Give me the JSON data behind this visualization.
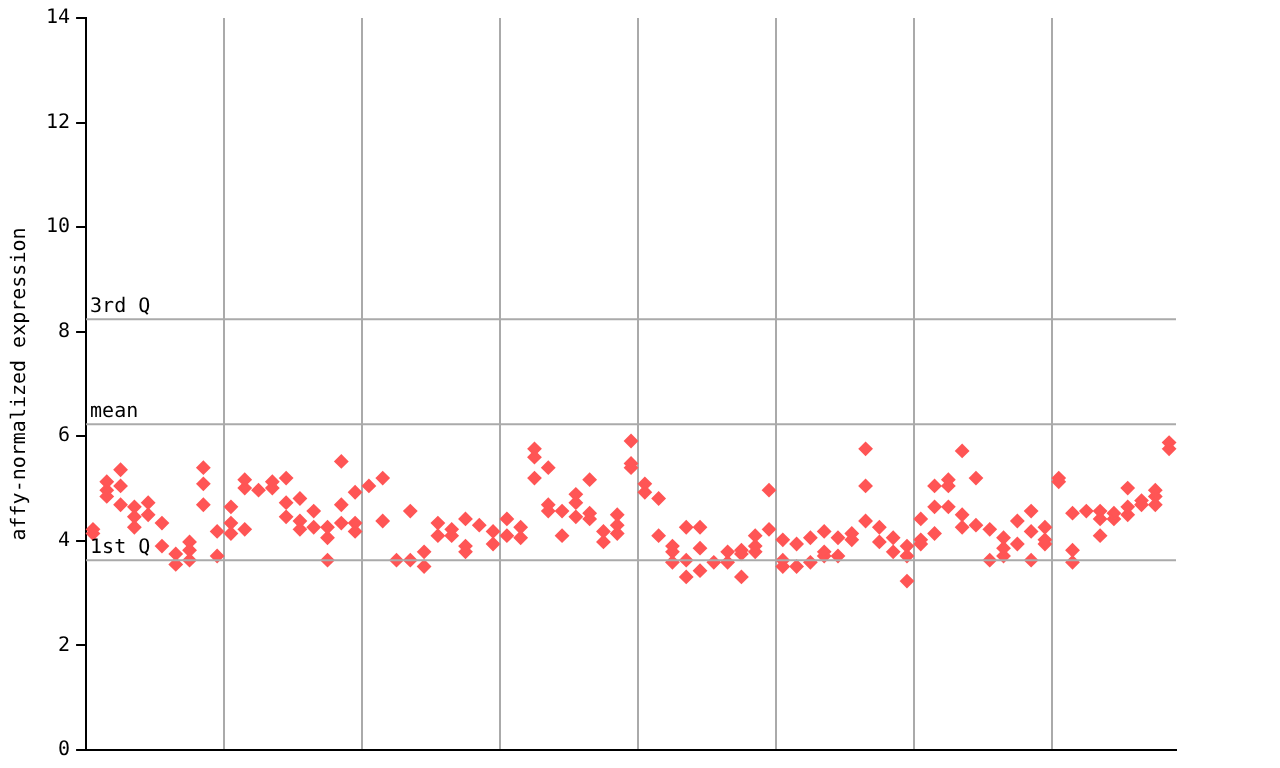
{
  "chart_data": {
    "type": "scatter",
    "ylabel": "affy-normalized expression",
    "ylim": [
      0,
      14
    ],
    "yticks": [
      0,
      2,
      4,
      6,
      8,
      10,
      12,
      14
    ],
    "categories": [
      null,
      null,
      null,
      null,
      null,
      null,
      null,
      null,
      null,
      null,
      null,
      null,
      null,
      null,
      null,
      null,
      null,
      null,
      null,
      null,
      null,
      null,
      null,
      null,
      null,
      null,
      null,
      null,
      null,
      null,
      null,
      null,
      null,
      null,
      null,
      null,
      null,
      null,
      null,
      null,
      null,
      null,
      null,
      null,
      null,
      null,
      null,
      null,
      null,
      null,
      null,
      null,
      null,
      null,
      null,
      null,
      null,
      null,
      null,
      null,
      null,
      null,
      null,
      null,
      null,
      null,
      null,
      null,
      null,
      null,
      null,
      null,
      null,
      null,
      null,
      null,
      null,
      null,
      null
    ],
    "tick_labels": "y",
    "grid": "x",
    "marker": "diamond",
    "ref_lines": [
      {
        "axis": "y",
        "value": 8.24,
        "label": "3rd Q",
        "color": "#aaaaaa"
      },
      {
        "axis": "y",
        "value": 6.23,
        "label": "mean",
        "color": "#aaaaaa"
      },
      {
        "axis": "y",
        "value": 3.63,
        "label": "1st Q",
        "color": "#aaaaaa"
      }
    ],
    "series": [
      {
        "color": "#ff5555",
        "values": [
          4.22,
          5.13,
          5.36,
          4.65,
          4.73,
          4.34,
          3.75,
          3.98,
          5.4,
          4.18,
          4.65,
          5.17,
          4.97,
          5.13,
          5.2,
          4.81,
          4.57,
          4.26,
          5.52,
          4.93,
          5.05,
          5.2,
          3.63,
          4.57,
          3.79,
          4.34,
          4.22,
          4.42,
          4.3,
          4.18,
          4.42,
          4.26,
          5.76,
          5.4,
          4.57,
          4.89,
          5.17,
          4.18,
          4.5,
          5.91,
          5.09,
          4.81,
          3.9,
          4.26,
          4.26,
          3.59,
          3.79,
          3.82,
          4.1,
          4.97,
          4.02,
          3.94,
          4.06,
          4.18,
          4.06,
          4.14,
          5.76,
          4.26,
          4.06,
          3.9,
          4.42,
          5.05,
          5.17,
          5.72,
          5.2,
          4.22,
          4.06,
          4.38,
          4.57,
          4.26,
          5.2,
          4.53,
          4.57,
          4.57,
          4.53,
          5.01,
          4.77,
          4.97,
          5.88
        ]
      },
      {
        "color": "#ff5555",
        "values": [
          4.14,
          4.97,
          5.05,
          4.46,
          4.5,
          3.9,
          3.55,
          3.82,
          5.09,
          3.71,
          4.34,
          5.01,
          null,
          5.01,
          4.73,
          4.38,
          4.26,
          4.06,
          4.69,
          4.34,
          null,
          4.38,
          null,
          3.63,
          3.51,
          4.1,
          4.1,
          3.9,
          null,
          3.94,
          4.1,
          4.06,
          5.6,
          4.69,
          4.1,
          4.73,
          4.53,
          3.98,
          4.3,
          5.48,
          4.93,
          4.1,
          3.79,
          3.63,
          3.86,
          null,
          3.59,
          3.75,
          3.9,
          4.22,
          3.63,
          3.51,
          3.59,
          3.79,
          3.71,
          4.02,
          5.05,
          3.98,
          3.79,
          3.71,
          4.02,
          4.65,
          5.05,
          4.5,
          4.3,
          3.63,
          3.86,
          3.94,
          4.18,
          4.02,
          5.13,
          3.82,
          null,
          4.42,
          4.42,
          4.65,
          4.69,
          4.85,
          5.76
        ]
      },
      {
        "color": "#ff5555",
        "values": [
          null,
          4.85,
          4.69,
          4.26,
          null,
          null,
          null,
          3.63,
          4.69,
          null,
          4.14,
          4.22,
          null,
          null,
          4.46,
          4.22,
          null,
          3.63,
          4.34,
          4.18,
          null,
          null,
          null,
          null,
          null,
          null,
          null,
          3.79,
          null,
          null,
          null,
          null,
          5.2,
          4.57,
          null,
          4.46,
          4.42,
          null,
          4.14,
          5.4,
          null,
          null,
          3.59,
          3.31,
          3.43,
          null,
          null,
          3.31,
          3.79,
          null,
          3.51,
          null,
          null,
          3.71,
          null,
          null,
          4.38,
          null,
          null,
          3.23,
          3.94,
          4.14,
          4.65,
          4.26,
          null,
          null,
          3.71,
          null,
          3.63,
          3.94,
          null,
          3.59,
          null,
          4.1,
          null,
          4.5,
          null,
          4.69,
          null
        ]
      }
    ]
  }
}
